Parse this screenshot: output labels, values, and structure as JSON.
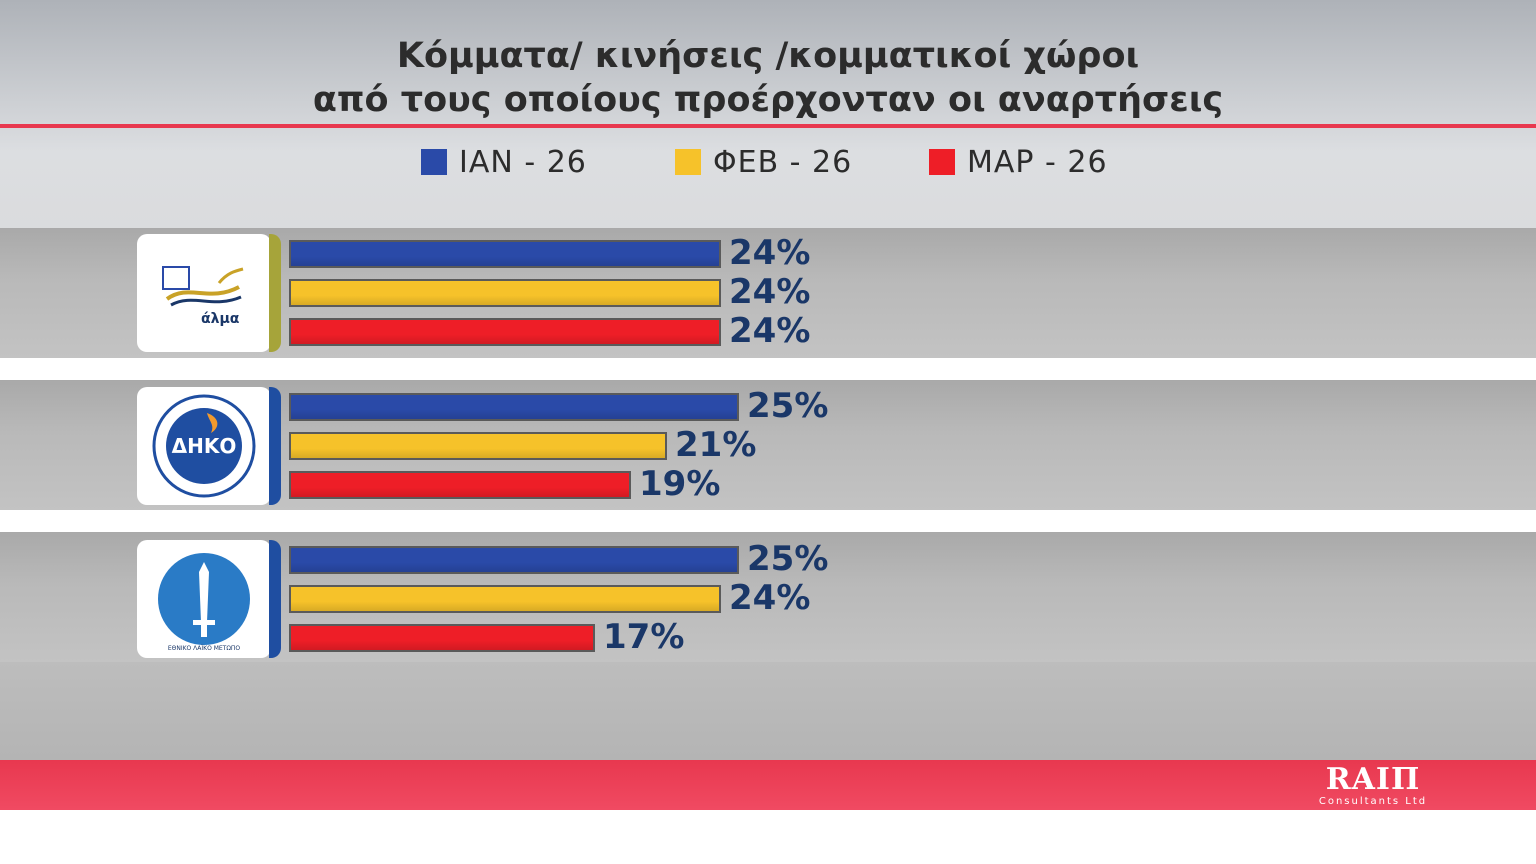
{
  "title": {
    "line1": "Κόμματα/ κινήσεις /κομματικοί χώροι",
    "line2": "από τους οποίους προέρχονταν οι αναρτήσεις"
  },
  "colors": {
    "series_1": "#2a4aa8",
    "series_2": "#f6c22a",
    "series_3": "#ee1e27",
    "footer": "#e8384f"
  },
  "legend": [
    "ΙΑΝ - 26",
    "ΦΕΒ - 26",
    "ΜΑΡ - 26"
  ],
  "parties": [
    {
      "logo": "alma-logo",
      "logo_text": "άλμα"
    },
    {
      "logo": "diko-logo",
      "logo_text": "ΔΗΚΟ"
    },
    {
      "logo": "elam-logo",
      "logo_text": "ΕΘΝΙΚΟ ΛΑΪΚΟ ΜΕΤΩΠΟ"
    }
  ],
  "chart_data": {
    "type": "bar",
    "orientation": "horizontal",
    "title": "Κόμματα/ κινήσεις /κομματικοί χώροι από τους οποίους προέρχονταν οι αναρτήσεις",
    "categories": [
      "άλμα",
      "ΔΗΚΟ",
      "ΕΘΝΙΚΟ ΛΑΪΚΟ ΜΕΤΩΠΟ"
    ],
    "series": [
      {
        "name": "ΙΑΝ - 26",
        "values": [
          24,
          25,
          25
        ],
        "labels": [
          "24%",
          "25%",
          "25%"
        ]
      },
      {
        "name": "ΦΕΒ - 26",
        "values": [
          24,
          21,
          24
        ],
        "labels": [
          "24%",
          "21%",
          "24%"
        ]
      },
      {
        "name": "ΜΑΡ - 26",
        "values": [
          24,
          19,
          17
        ],
        "labels": [
          "24%",
          "19%",
          "17%"
        ]
      }
    ],
    "unit": "%",
    "legend_position": "top",
    "grid": false
  },
  "footer": {
    "brand": "RAIΠ",
    "brand_sub": "Consultants Ltd"
  }
}
